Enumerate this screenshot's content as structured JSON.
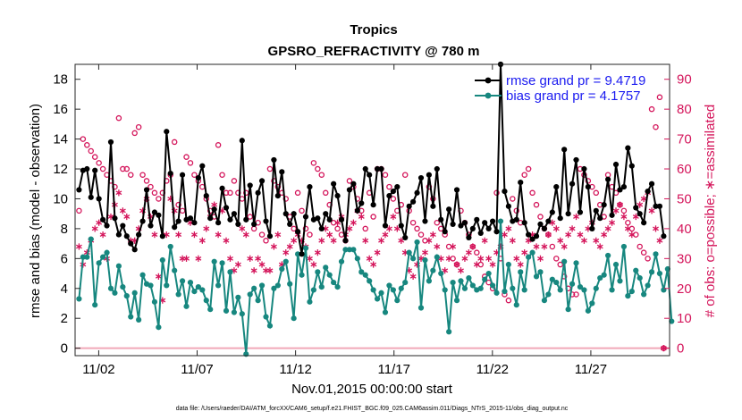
{
  "chart_data": {
    "type": "line",
    "title": "Tropics",
    "subtitle": "GPSRO_REFRACTIVITY @ 780 m",
    "xlabel": "Nov.01,2015 00:00:00 start",
    "ylabel": "rmse and bias (model - observation)",
    "y2label": "# of obs: o=possible; ∗=assimilated",
    "footnote": "data file: /Users/raeder/DAI/ATM_forcXX/CAM6_setup/f.e21.FHIST_BGC.f09_025.CAM6assim.011/Diags_NTrS_2015-11/obs_diag_output.nc",
    "x_unit": "days since Nov.01,2015 00:00",
    "xlim": [
      -0.2,
      30.0
    ],
    "ylim": [
      -0.5,
      19
    ],
    "y2lim": [
      -2.5,
      95
    ],
    "grid": false,
    "legend_position": "top-right",
    "xticks": [
      {
        "x": 1,
        "label": "11/02"
      },
      {
        "x": 6,
        "label": "11/07"
      },
      {
        "x": 11,
        "label": "11/12"
      },
      {
        "x": 16,
        "label": "11/17"
      },
      {
        "x": 21,
        "label": "11/22"
      },
      {
        "x": 26,
        "label": "11/27"
      }
    ],
    "yticks": [
      {
        "y": 0,
        "label": "0"
      },
      {
        "y": 2,
        "label": "2"
      },
      {
        "y": 4,
        "label": "4"
      },
      {
        "y": 6,
        "label": "6"
      },
      {
        "y": 8,
        "label": "8"
      },
      {
        "y": 10,
        "label": "10"
      },
      {
        "y": 12,
        "label": "12"
      },
      {
        "y": 14,
        "label": "14"
      },
      {
        "y": 16,
        "label": "16"
      },
      {
        "y": 18,
        "label": "18"
      }
    ],
    "y2ticks": [
      {
        "y": 0,
        "label": "0"
      },
      {
        "y": 10,
        "label": "10"
      },
      {
        "y": 20,
        "label": "20"
      },
      {
        "y": 30,
        "label": "30"
      },
      {
        "y": 40,
        "label": "40"
      },
      {
        "y": 50,
        "label": "50"
      },
      {
        "y": 60,
        "label": "60"
      },
      {
        "y": 70,
        "label": "70"
      },
      {
        "y": 80,
        "label": "80"
      },
      {
        "y": 90,
        "label": "90"
      }
    ],
    "colors": {
      "rmse": "#000000",
      "bias": "#17877f",
      "obs": "#d4145a",
      "legend_text": "#1a1af0",
      "zero_line": "#f1a8b8"
    },
    "legend": [
      {
        "series": "rmse",
        "label": "rmse grand pr = 9.4719"
      },
      {
        "series": "bias",
        "label": "bias grand pr = 4.1757"
      }
    ],
    "series": [
      {
        "name": "rmse",
        "axis": "left",
        "values": [
          10.6,
          11.9,
          12.0,
          10.1,
          11.9,
          10.0,
          8.6,
          8.2,
          13.8,
          8.7,
          7.6,
          8.2,
          7.5,
          7.0,
          6.6,
          7.6,
          8.5,
          10.6,
          8.2,
          9.1,
          8.9,
          7.5,
          14.5,
          11.7,
          8.1,
          8.5,
          11.6,
          8.6,
          8.7,
          8.4,
          11.4,
          12.2,
          10.2,
          8.7,
          9.3,
          8.4,
          10.7,
          9.4,
          8.6,
          9.0,
          8.3,
          13.9,
          8.6,
          10.9,
          8.3,
          10.4,
          11.2,
          8.5,
          7.5,
          12.6,
          10.2,
          11.8,
          9.0,
          8.3,
          9.0,
          7.8,
          6.3,
          8.8,
          10.8,
          8.6,
          8.7,
          8.0,
          9.0,
          8.6,
          11.0,
          10.2,
          8.6,
          7.2,
          10.6,
          11.0,
          9.2,
          9.7,
          12.0,
          11.6,
          9.6,
          12.0,
          12.0,
          8.2,
          10.2,
          10.5,
          10.8,
          8.2,
          7.4,
          9.5,
          9.8,
          10.4,
          11.4,
          8.5,
          11.6,
          9.5,
          12.0,
          8.6,
          7.8,
          9.3,
          8.3,
          10.6,
          8.2,
          8.4,
          7.4,
          8.0,
          8.6,
          7.7,
          8.4,
          8.0,
          8.5,
          7.8,
          19.0,
          10.5,
          9.5,
          8.5,
          8.6,
          11.1,
          8.4,
          7.6,
          7.3,
          7.5,
          8.3,
          8.0,
          8.5,
          9.1,
          10.8,
          8.7,
          13.3,
          9.0,
          11.0,
          12.6,
          9.1,
          12.0,
          10.8,
          8.0,
          9.2,
          8.7,
          9.6,
          11.3,
          8.9,
          12.3,
          10.6,
          10.8,
          13.4,
          12.2,
          9.4,
          9.0,
          8.4,
          10.5,
          11.0,
          9.5,
          9.5,
          7.5
        ]
      },
      {
        "name": "bias",
        "axis": "left",
        "values": [
          3.3,
          6.1,
          6.1,
          7.3,
          2.9,
          5.7,
          6.1,
          6.4,
          4.0,
          3.7,
          5.5,
          4.1,
          3.5,
          2.1,
          3.7,
          1.9,
          4.9,
          4.3,
          4.2,
          3.1,
          1.4,
          5.9,
          4.2,
          6.8,
          5.2,
          3.6,
          4.5,
          2.8,
          4.4,
          3.8,
          4.1,
          3.9,
          3.2,
          2.6,
          5.8,
          4.2,
          5.7,
          2.5,
          5.1,
          2.4,
          3.4,
          2.3,
          -0.4,
          3.6,
          4.0,
          3.2,
          4.2,
          2.1,
          1.5,
          4.0,
          4.2,
          5.3,
          5.8,
          4.3,
          2.0,
          6.3,
          4.9,
          6.7,
          3.1,
          3.9,
          5.1,
          4.1,
          5.4,
          4.9,
          4.4,
          4.1,
          5.8,
          6.6,
          6.6,
          6.6,
          6.0,
          5.1,
          4.9,
          4.5,
          3.9,
          3.3,
          3.7,
          2.4,
          4.2,
          3.9,
          3.2,
          4.0,
          4.4,
          6.4,
          6.0,
          7.1,
          2.7,
          5.9,
          4.5,
          5.2,
          6.1,
          5.0,
          3.9,
          1.1,
          4.4,
          3.2,
          4.5,
          4.0,
          4.7,
          4.2,
          3.9,
          4.0,
          4.6,
          5.0,
          4.2,
          3.7,
          8.5,
          3.8,
          5.6,
          4.0,
          2.9,
          5.1,
          3.9,
          6.1,
          6.4,
          4.8,
          5.1,
          3.2,
          3.6,
          4.6,
          4.4,
          3.9,
          5.8,
          2.6,
          4.3,
          5.7,
          4.1,
          3.9,
          2.5,
          3.0,
          4.0,
          4.7,
          4.9,
          6.2,
          3.9,
          5.6,
          4.5,
          6.8,
          3.5,
          3.8,
          5.2,
          4.7,
          3.6,
          4.2,
          5.1,
          6.3,
          5.0,
          3.9,
          5.3,
          1.8
        ]
      },
      {
        "name": "possible obs",
        "axis": "right",
        "marker": "circle",
        "values": [
          46,
          70,
          68,
          66,
          64,
          62,
          60,
          58,
          56,
          54,
          77,
          60,
          60,
          58,
          72,
          74,
          58,
          56,
          54,
          52,
          50,
          52,
          56,
          58,
          69,
          48,
          46,
          64,
          62,
          58,
          56,
          54,
          50,
          46,
          44,
          68,
          58,
          52,
          52,
          56,
          52,
          50,
          52,
          44,
          40,
          42,
          38,
          36,
          60,
          56,
          54,
          52,
          50,
          44,
          40,
          52,
          46,
          40,
          38,
          62,
          60,
          58,
          52,
          48,
          42,
          40,
          38,
          36,
          56,
          54,
          50,
          46,
          40,
          52,
          44,
          60,
          60,
          58,
          54,
          50,
          46,
          48,
          58,
          46,
          42,
          40,
          38,
          36,
          54,
          50,
          42,
          40,
          38,
          34,
          30,
          28,
          46,
          42,
          38,
          34,
          32,
          28,
          24,
          22,
          20,
          52,
          30,
          18,
          16,
          50,
          46,
          42,
          58,
          60,
          52,
          48,
          44,
          40,
          38,
          34,
          30,
          28,
          24,
          20,
          18,
          18,
          60,
          58,
          56,
          54,
          52,
          48,
          44,
          58,
          54,
          52,
          48,
          46,
          42,
          40,
          38,
          34,
          32,
          30,
          80,
          74,
          84,
          0
        ]
      },
      {
        "name": "assimilated obs",
        "axis": "right",
        "marker": "asterisk",
        "values": [
          34,
          28,
          32,
          36,
          40,
          42,
          38,
          30,
          44,
          48,
          52,
          46,
          44,
          36,
          36,
          40,
          46,
          50,
          44,
          38,
          24,
          16,
          38,
          50,
          46,
          38,
          30,
          30,
          42,
          38,
          30,
          36,
          40,
          44,
          48,
          38,
          46,
          36,
          30,
          26,
          28,
          40,
          38,
          30,
          26,
          30,
          28,
          26,
          26,
          34,
          38,
          28,
          32,
          34,
          36,
          38,
          36,
          34,
          30,
          28,
          32,
          36,
          40,
          38,
          36,
          42,
          44,
          38,
          40,
          42,
          46,
          44,
          36,
          30,
          28,
          32,
          36,
          38,
          40,
          44,
          40,
          36,
          32,
          26,
          24,
          28,
          30,
          32,
          36,
          38,
          34,
          30,
          26,
          30,
          34,
          28,
          26,
          30,
          32,
          34,
          28,
          30,
          36,
          30,
          28,
          32,
          34,
          38,
          40,
          36,
          30,
          28,
          32,
          36,
          38,
          34,
          30,
          34,
          38,
          42,
          40,
          36,
          34,
          38,
          40,
          44,
          38,
          36,
          40,
          42,
          36,
          34,
          38,
          40,
          42,
          46,
          48,
          44,
          40,
          38,
          44,
          48,
          50,
          52,
          46,
          40,
          36,
          0
        ]
      }
    ]
  }
}
